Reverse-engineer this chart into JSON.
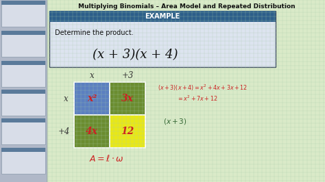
{
  "title": "Multiplying Binomials – Area Model and Repeated Distribution",
  "bg_color": "#ccd8c0",
  "grid_color": "#b8ccb0",
  "sidebar_bg": "#b0b8c8",
  "sidebar_thumb_bg": "#d8dde8",
  "sidebar_thumb_header": "#5a7a9a",
  "example_header_bg": "#2d5f8a",
  "example_header_fg": "#ffffff",
  "example_box_bg": "#dde4f0",
  "problem_text": "Determine the product.",
  "formula": "(x + 3)(x + 4)",
  "col_labels": [
    "x",
    "+3"
  ],
  "row_labels": [
    "x",
    "+4"
  ],
  "cell_colors": [
    "#5b7fc0",
    "#6a8c30",
    "#6a8c30",
    "#e8e818"
  ],
  "cell_texts": [
    "x²",
    "3x",
    "4x",
    "12"
  ],
  "rhs_eq1_color": "#cc2222",
  "rhs_eq2_color": "#cc2222",
  "rhs_factor_color": "#336633",
  "area_formula_color": "#cc2222",
  "title_color": "#111111",
  "label_color": "#333333"
}
